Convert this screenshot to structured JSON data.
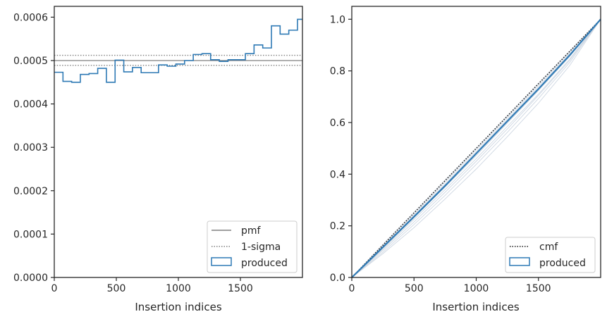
{
  "colors": {
    "produced": "#2f7ab5",
    "pmf": "#808080",
    "sigma": "#808080",
    "cmf": "#1a1a1a",
    "trials": "#c9d3df"
  },
  "chart_data": [
    {
      "type": "line",
      "title": "",
      "xlabel": "Insertion indices",
      "ylabel": "",
      "xlim": [
        0,
        2000
      ],
      "ylim": [
        0,
        0.000625
      ],
      "xticks": [
        0,
        500,
        1000,
        1500
      ],
      "xtick_labels": [
        "0",
        "500",
        "1000",
        "1500"
      ],
      "yticks": [
        0,
        0.0001,
        0.0002,
        0.0003,
        0.0004,
        0.0005,
        0.0006
      ],
      "ytick_labels": [
        "0.0000",
        "0.0001",
        "0.0002",
        "0.0003",
        "0.0004",
        "0.0005",
        "0.0006"
      ],
      "grid": false,
      "legend": {
        "placement": "lower-right",
        "entries": [
          "pmf",
          "1-sigma",
          "produced"
        ]
      },
      "reference_lines": {
        "pmf": 0.0005,
        "sigma_upper": 0.000512,
        "sigma_lower": 0.000489
      },
      "produced_step": {
        "bin_edges": [
          0,
          70,
          140,
          210,
          280,
          350,
          420,
          490,
          560,
          630,
          700,
          770,
          840,
          910,
          980,
          1050,
          1120,
          1190,
          1260,
          1330,
          1400,
          1470,
          1540,
          1610,
          1680,
          1750,
          1820,
          1890,
          1960,
          2000
        ],
        "values": [
          0.000473,
          0.000452,
          0.00045,
          0.000468,
          0.00047,
          0.000482,
          0.00045,
          0.000501,
          0.000474,
          0.000484,
          0.000472,
          0.000472,
          0.00049,
          0.000487,
          0.000492,
          0.0005,
          0.000514,
          0.000516,
          0.000502,
          0.000498,
          0.000502,
          0.000502,
          0.000516,
          0.000536,
          0.000529,
          0.00058,
          0.000561,
          0.00057,
          0.000595
        ]
      }
    },
    {
      "type": "line",
      "title": "",
      "xlabel": "Insertion indices",
      "ylabel": "",
      "xlim": [
        0,
        2000
      ],
      "ylim": [
        0,
        1.05
      ],
      "xticks": [
        0,
        500,
        1000,
        1500
      ],
      "xtick_labels": [
        "0",
        "500",
        "1000",
        "1500"
      ],
      "yticks": [
        0,
        0.2,
        0.4,
        0.6,
        0.8,
        1.0
      ],
      "ytick_labels": [
        "0.0",
        "0.2",
        "0.4",
        "0.6",
        "0.8",
        "1.0"
      ],
      "grid": false,
      "legend": {
        "placement": "lower-right",
        "entries": [
          "cmf",
          "produced"
        ]
      },
      "cmf": {
        "x": [
          0,
          2000
        ],
        "y": [
          0,
          1
        ]
      },
      "produced": {
        "x": [
          0,
          250,
          500,
          750,
          1000,
          1250,
          1500,
          1750,
          2000
        ],
        "y": [
          0,
          0.117,
          0.235,
          0.355,
          0.48,
          0.605,
          0.73,
          0.86,
          1.0
        ]
      },
      "trials": [
        {
          "y": [
            0,
            0.11,
            0.225,
            0.34,
            0.46,
            0.585,
            0.71,
            0.845,
            1.0
          ]
        },
        {
          "y": [
            0,
            0.123,
            0.245,
            0.37,
            0.495,
            0.62,
            0.745,
            0.872,
            1.0
          ]
        },
        {
          "y": [
            0,
            0.105,
            0.215,
            0.33,
            0.45,
            0.575,
            0.705,
            0.84,
            1.0
          ]
        },
        {
          "y": [
            0,
            0.128,
            0.252,
            0.377,
            0.5,
            0.626,
            0.752,
            0.876,
            1.0
          ]
        },
        {
          "y": [
            0,
            0.098,
            0.205,
            0.318,
            0.438,
            0.562,
            0.693,
            0.832,
            1.0
          ]
        },
        {
          "y": [
            0,
            0.115,
            0.232,
            0.35,
            0.472,
            0.598,
            0.724,
            0.855,
            1.0
          ]
        },
        {
          "y": [
            0,
            0.092,
            0.193,
            0.304,
            0.42,
            0.545,
            0.675,
            0.82,
            1.0
          ]
        },
        {
          "y": [
            0,
            0.12,
            0.24,
            0.362,
            0.487,
            0.612,
            0.738,
            0.866,
            1.0
          ]
        }
      ]
    }
  ]
}
